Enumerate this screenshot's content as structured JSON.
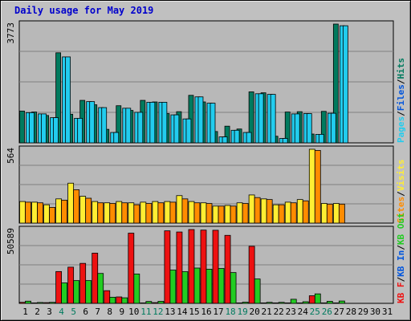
{
  "title": "Daily usage for May 2019",
  "colors": {
    "hits": "#007a5e",
    "files": "#22ccee",
    "pages": "#22ccee",
    "visits": "#ffee33",
    "sites": "#ff8c00",
    "kb_in": "#22cc22",
    "kb_out": "#22cc22",
    "kb_f": "#ee1111",
    "panel_bg": "#b8b8b8",
    "frame": "#c0c0c0",
    "grid": "#808080",
    "axis_text": "#000000",
    "day_weekend": "#007a5e",
    "day_weekday": "#000000"
  },
  "chart_data": [
    {
      "type": "bar",
      "name": "hits_files_pages",
      "max_label": "3773",
      "ymax": 3773,
      "series_labels": {
        "pages": "Pages",
        "files": "Files",
        "hits": "Hits"
      },
      "series": [
        {
          "name": "Hits",
          "values": [
            1010,
            980,
            870,
            2860,
            910,
            1350,
            1210,
            430,
            1180,
            1030,
            1350,
            1300,
            930,
            990,
            1510,
            1300,
            360,
            530,
            440,
            1620,
            1590,
            210,
            980,
            990,
            280,
            1000,
            3773
          ]
        },
        {
          "name": "Files",
          "values": [
            960,
            920,
            800,
            2730,
            780,
            1310,
            1120,
            330,
            1100,
            970,
            1290,
            1290,
            890,
            760,
            1460,
            1260,
            190,
            400,
            330,
            1560,
            1540,
            140,
            920,
            930,
            270,
            940,
            3720
          ]
        },
        {
          "name": "Pages",
          "values": [
            960,
            920,
            800,
            2730,
            780,
            1310,
            1120,
            330,
            1100,
            970,
            1290,
            1290,
            890,
            760,
            1460,
            1260,
            190,
            400,
            330,
            1560,
            1540,
            140,
            920,
            930,
            270,
            940,
            3720
          ]
        }
      ]
    },
    {
      "type": "bar",
      "name": "visits_sites",
      "max_label": "564",
      "ymax": 564,
      "series_labels": {
        "visits": "Visits",
        "sites": "Sites"
      },
      "series": [
        {
          "name": "Visits",
          "values": [
            165,
            160,
            140,
            185,
            305,
            205,
            165,
            155,
            165,
            155,
            160,
            165,
            165,
            210,
            165,
            155,
            130,
            135,
            155,
            215,
            185,
            140,
            160,
            180,
            564,
            150,
            150
          ]
        },
        {
          "name": "Sites",
          "values": [
            160,
            155,
            120,
            175,
            255,
            190,
            155,
            150,
            155,
            140,
            150,
            155,
            160,
            185,
            155,
            150,
            130,
            130,
            150,
            195,
            180,
            140,
            155,
            170,
            555,
            145,
            145
          ]
        }
      ]
    },
    {
      "type": "bar",
      "name": "kbytes",
      "max_label": "50589",
      "ymax": 50589,
      "series_labels": {
        "kb_f": "KB F",
        "kb_in": "KB In",
        "kb_out": "KB Out"
      },
      "series": [
        {
          "name": "KB F",
          "values": [
            700,
            300,
            500,
            21800,
            24800,
            27400,
            34400,
            8700,
            4400,
            48100,
            300,
            500,
            49700,
            48900,
            50589,
            50200,
            50100,
            46600,
            300,
            39100,
            300,
            300,
            300,
            300,
            5200,
            300,
            300
          ]
        },
        {
          "name": "KB In",
          "values": [
            1500,
            600,
            700,
            14000,
            15600,
            15600,
            20500,
            4200,
            3800,
            20100,
            1300,
            1400,
            22800,
            21700,
            24200,
            23400,
            23900,
            21100,
            800,
            16700,
            700,
            700,
            2800,
            1100,
            6500,
            1400,
            1600
          ]
        }
      ]
    }
  ],
  "days": [
    "1",
    "2",
    "3",
    "4",
    "5",
    "6",
    "7",
    "8",
    "9",
    "10",
    "11",
    "12",
    "13",
    "14",
    "15",
    "16",
    "17",
    "18",
    "19",
    "20",
    "21",
    "22",
    "23",
    "24",
    "25",
    "26",
    "27",
    "28",
    "29",
    "30",
    "31"
  ],
  "weekend_days": [
    "4",
    "5",
    "11",
    "12",
    "18",
    "19",
    "25",
    "26"
  ],
  "bar_days": [
    "1",
    "2",
    "3",
    "4",
    "5",
    "6",
    "7",
    "8",
    "9",
    "10",
    "11",
    "12",
    "13",
    "14",
    "15",
    "16",
    "17",
    "18",
    "19",
    "20",
    "21",
    "22",
    "23",
    "24",
    "25",
    "26",
    "27",
    "28",
    "29",
    "30",
    "31"
  ],
  "right_labels": {
    "top": [
      {
        "text": "Pages",
        "color": "#22ccee"
      },
      {
        "text": "/",
        "color": "#000000"
      },
      {
        "text": "Files",
        "color": "#0055dd"
      },
      {
        "text": "/",
        "color": "#000000"
      },
      {
        "text": "Hits",
        "color": "#007a5e"
      }
    ],
    "mid": [
      {
        "text": "Sites",
        "color": "#ff8c00"
      },
      {
        "text": "/",
        "color": "#000000"
      },
      {
        "text": "Visits",
        "color": "#ffee33"
      }
    ],
    "bot": [
      {
        "text": "KB F",
        "color": "#ee1111"
      },
      {
        "text": "/",
        "color": "#000000"
      },
      {
        "text": "KB In",
        "color": "#0055dd"
      },
      {
        "text": "/",
        "color": "#000000"
      },
      {
        "text": "KB Out",
        "color": "#22cc22"
      }
    ]
  }
}
